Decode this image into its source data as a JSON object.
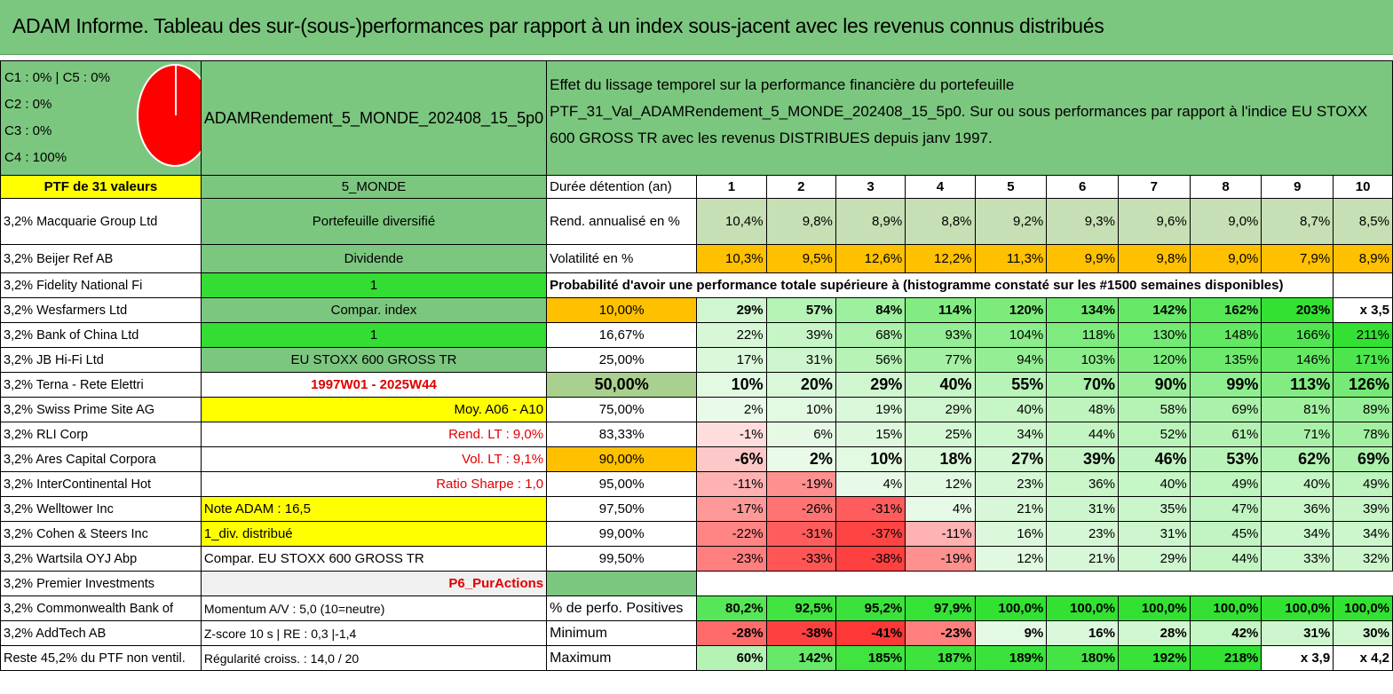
{
  "title": "ADAM Informe. Tableau des sur-(sous-)performances par rapport à un index sous-jacent avec les revenus connus distribués",
  "legend": [
    "C1 : 0% | C5 : 0%",
    "C2 : 0%",
    "C3 : 0%",
    "C4 : 100%"
  ],
  "ptf_name": "ADAMRendement_5_MONDE_202408_15_5p0",
  "description": "Effet du lissage temporel sur la performance financière du portefeuille PTF_31_Val_ADAMRendement_5_MONDE_202408_15_5p0. Sur ou sous performances par rapport à l'indice EU STOXX 600 GROSS TR avec les revenus DISTRIBUES depuis janv 1997.",
  "ptf_count": "PTF de 31 valeurs",
  "zone": "5_MONDE",
  "duration_label": "Durée détention (an)",
  "years": [
    "1",
    "2",
    "3",
    "4",
    "5",
    "6",
    "7",
    "8",
    "9",
    "10"
  ],
  "holdings": [
    "3,2% Macquarie Group Ltd",
    "3,2% Beijer Ref AB",
    "3,2% Fidelity National Fi",
    "3,2% Wesfarmers Ltd",
    "3,2% Bank of China Ltd",
    "3,2% JB Hi-Fi Ltd",
    "3,2% Terna - Rete Elettri",
    "3,2% Swiss Prime Site AG",
    "3,2% RLI Corp",
    "3,2% Ares Capital Corpora",
    "3,2% InterContinental Hot",
    "3,2% Welltower Inc",
    "3,2% Cohen & Steers Inc",
    "3,2% Wartsila OYJ Abp",
    "3,2% Premier Investments",
    "3,2% Commonwealth Bank of",
    "3,2% AddTech AB",
    "Reste 45,2% du PTF non ventil."
  ],
  "side": {
    "diversified": "Portefeuille diversifié",
    "dividende": "Dividende",
    "one_a": "1",
    "compar_index": "Compar. index",
    "one_b": "1",
    "index_name": "EU STOXX 600 GROSS TR",
    "period": "1997W01 - 2025W44",
    "moy": "Moy. A06 - A10",
    "rend_lt": "Rend. LT : 9,0%",
    "vol_lt": "Vol. LT : 9,1%",
    "sharpe": "Ratio Sharpe : 1,0",
    "note": "Note ADAM : 16,5",
    "div": "1_div. distribué",
    "compar": "Compar. EU STOXX 600 GROSS TR",
    "tag": "P6_PurActions",
    "momentum": "Momentum A/V : 5,0 (10=neutre)",
    "zscore": "Z-score 10 s | RE : 0,3 |-1,4",
    "regularity": "Régularité croiss. : 14,0 / 20"
  },
  "rend": {
    "label": "Rend. annualisé en %",
    "values": [
      "10,4%",
      "9,8%",
      "8,9%",
      "8,8%",
      "9,2%",
      "9,3%",
      "9,6%",
      "9,0%",
      "8,7%",
      "8,5%"
    ]
  },
  "vol": {
    "label": "Volatilité en %",
    "values": [
      "10,3%",
      "9,5%",
      "12,6%",
      "12,2%",
      "11,3%",
      "9,9%",
      "9,8%",
      "9,0%",
      "7,9%",
      "8,9%"
    ]
  },
  "prob_title": "Probabilité d'avoir une performance totale supérieure à (histogramme constaté sur les #1500 semaines disponibles)",
  "prob_rows": [
    {
      "p": "10,00%",
      "v": [
        "29%",
        "57%",
        "84%",
        "114%",
        "120%",
        "134%",
        "142%",
        "162%",
        "203%",
        "x 3,5"
      ]
    },
    {
      "p": "16,67%",
      "v": [
        "22%",
        "39%",
        "68%",
        "93%",
        "104%",
        "118%",
        "130%",
        "148%",
        "166%",
        "211%"
      ]
    },
    {
      "p": "25,00%",
      "v": [
        "17%",
        "31%",
        "56%",
        "77%",
        "94%",
        "103%",
        "120%",
        "135%",
        "146%",
        "171%"
      ]
    },
    {
      "p": "50,00%",
      "v": [
        "10%",
        "20%",
        "29%",
        "40%",
        "55%",
        "70%",
        "90%",
        "99%",
        "113%",
        "126%"
      ]
    },
    {
      "p": "75,00%",
      "v": [
        "2%",
        "10%",
        "19%",
        "29%",
        "40%",
        "48%",
        "58%",
        "69%",
        "81%",
        "89%"
      ]
    },
    {
      "p": "83,33%",
      "v": [
        "-1%",
        "6%",
        "15%",
        "25%",
        "34%",
        "44%",
        "52%",
        "61%",
        "71%",
        "78%"
      ]
    },
    {
      "p": "90,00%",
      "v": [
        "-6%",
        "2%",
        "10%",
        "18%",
        "27%",
        "39%",
        "46%",
        "53%",
        "62%",
        "69%"
      ]
    },
    {
      "p": "95,00%",
      "v": [
        "-11%",
        "-19%",
        "4%",
        "12%",
        "23%",
        "36%",
        "40%",
        "49%",
        "40%",
        "49%"
      ]
    },
    {
      "p": "97,50%",
      "v": [
        "-17%",
        "-26%",
        "-31%",
        "4%",
        "21%",
        "31%",
        "35%",
        "47%",
        "36%",
        "39%"
      ]
    },
    {
      "p": "99,00%",
      "v": [
        "-22%",
        "-31%",
        "-37%",
        "-11%",
        "16%",
        "23%",
        "31%",
        "45%",
        "34%",
        "34%"
      ]
    },
    {
      "p": "99,50%",
      "v": [
        "-23%",
        "-33%",
        "-38%",
        "-19%",
        "12%",
        "21%",
        "29%",
        "44%",
        "33%",
        "32%"
      ]
    }
  ],
  "positives": {
    "label": "% de perfo. Positives",
    "values": [
      "80,2%",
      "92,5%",
      "95,2%",
      "97,9%",
      "100,0%",
      "100,0%",
      "100,0%",
      "100,0%",
      "100,0%",
      "100,0%"
    ]
  },
  "minimum": {
    "label": "Minimum",
    "values": [
      "-28%",
      "-38%",
      "-41%",
      "-23%",
      "9%",
      "16%",
      "28%",
      "42%",
      "31%",
      "30%"
    ]
  },
  "maximum": {
    "label": "Maximum",
    "values": [
      "60%",
      "142%",
      "185%",
      "187%",
      "189%",
      "180%",
      "192%",
      "218%",
      "x 3,9",
      "x 4,2"
    ]
  }
}
